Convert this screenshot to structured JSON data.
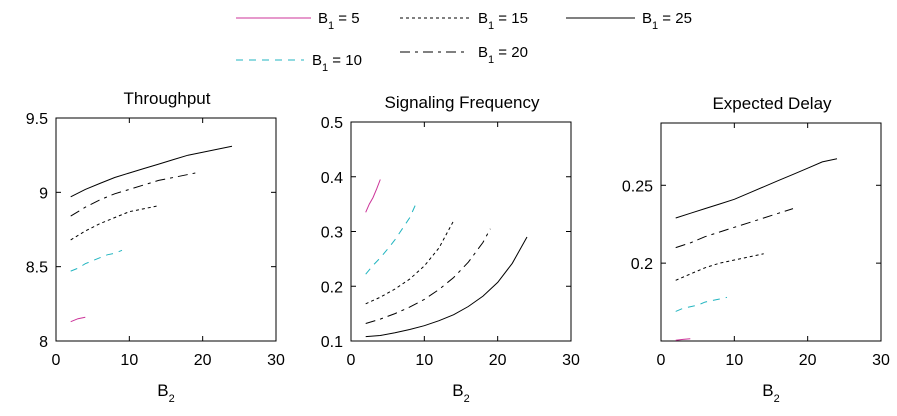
{
  "colors": {
    "s5": "#cc3399",
    "s10": "#22b5c0",
    "s15": "#000000",
    "s20": "#000000",
    "s25": "#000000"
  },
  "legend": [
    {
      "key": "s5",
      "base": "B",
      "sub": "1",
      "rest": " = 5"
    },
    {
      "key": "s15",
      "base": "B",
      "sub": "1",
      "rest": " = 15"
    },
    {
      "key": "s25",
      "base": "B",
      "sub": "1",
      "rest": " = 25"
    },
    {
      "key": "s10",
      "base": "B",
      "sub": "1",
      "rest": " = 10"
    },
    {
      "key": "s20",
      "base": "B",
      "sub": "1",
      "rest": " = 20"
    }
  ],
  "chart_data": [
    {
      "type": "line",
      "title": "Throughput",
      "xlabel": {
        "base": "B",
        "sub": "2"
      },
      "xlim": [
        0,
        30
      ],
      "ylim": [
        8,
        9.5
      ],
      "xticks": [
        "0",
        "10",
        "20",
        "30"
      ],
      "yticks": [
        "8",
        "8.5",
        "9",
        "9.5"
      ],
      "series": [
        {
          "key": "s5",
          "x": [
            2,
            3,
            4
          ],
          "y": [
            8.13,
            8.15,
            8.16
          ]
        },
        {
          "key": "s10",
          "x": [
            2,
            3,
            4,
            5,
            6,
            7,
            8,
            9
          ],
          "y": [
            8.47,
            8.49,
            8.52,
            8.54,
            8.56,
            8.58,
            8.59,
            8.61
          ]
        },
        {
          "key": "s15",
          "x": [
            2,
            4,
            6,
            8,
            10,
            12,
            14
          ],
          "y": [
            8.68,
            8.74,
            8.79,
            8.83,
            8.87,
            8.89,
            8.91
          ]
        },
        {
          "key": "s20",
          "x": [
            2,
            4,
            6,
            8,
            10,
            12,
            14,
            16,
            18,
            19
          ],
          "y": [
            8.84,
            8.9,
            8.95,
            8.99,
            9.02,
            9.05,
            9.08,
            9.1,
            9.12,
            9.13
          ]
        },
        {
          "key": "s25",
          "x": [
            2,
            4,
            6,
            8,
            10,
            12,
            14,
            16,
            18,
            20,
            22,
            24
          ],
          "y": [
            8.97,
            9.02,
            9.06,
            9.1,
            9.13,
            9.16,
            9.19,
            9.22,
            9.25,
            9.27,
            9.29,
            9.31
          ]
        }
      ]
    },
    {
      "type": "line",
      "title": "Signaling Frequency",
      "xlabel": {
        "base": "B",
        "sub": "2"
      },
      "xlim": [
        0,
        30
      ],
      "ylim": [
        0.1,
        0.5
      ],
      "xticks": [
        "0",
        "10",
        "20",
        "30"
      ],
      "yticks": [
        "0.1",
        "0.2",
        "0.3",
        "0.4",
        "0.5"
      ],
      "series": [
        {
          "key": "s5",
          "x": [
            2,
            2.5,
            3,
            3.5,
            4
          ],
          "y": [
            0.335,
            0.35,
            0.362,
            0.378,
            0.395
          ]
        },
        {
          "key": "s10",
          "x": [
            2,
            3,
            4,
            5,
            6,
            7,
            8,
            9
          ],
          "y": [
            0.222,
            0.238,
            0.252,
            0.268,
            0.285,
            0.305,
            0.325,
            0.355
          ]
        },
        {
          "key": "s15",
          "x": [
            2,
            4,
            6,
            8,
            10,
            12,
            14
          ],
          "y": [
            0.168,
            0.18,
            0.195,
            0.213,
            0.237,
            0.27,
            0.32
          ]
        },
        {
          "key": "s20",
          "x": [
            2,
            4,
            6,
            8,
            10,
            12,
            14,
            16,
            18,
            19
          ],
          "y": [
            0.132,
            0.14,
            0.15,
            0.162,
            0.176,
            0.194,
            0.216,
            0.244,
            0.28,
            0.305
          ]
        },
        {
          "key": "s25",
          "x": [
            2,
            4,
            6,
            8,
            10,
            12,
            14,
            16,
            18,
            20,
            22,
            24
          ],
          "y": [
            0.108,
            0.11,
            0.115,
            0.121,
            0.128,
            0.137,
            0.148,
            0.163,
            0.182,
            0.207,
            0.242,
            0.29
          ]
        }
      ]
    },
    {
      "type": "line",
      "title": "Expected Delay",
      "xlabel": {
        "base": "B",
        "sub": "2"
      },
      "xlim": [
        0,
        30
      ],
      "ylim": [
        0.15,
        0.29
      ],
      "xticks": [
        "0",
        "10",
        "20",
        "30"
      ],
      "yticks": [
        "0.2",
        "0.25"
      ],
      "yticks_at": [
        0.2,
        0.25
      ],
      "series": [
        {
          "key": "s5",
          "x": [
            2,
            3,
            4
          ],
          "y": [
            0.1505,
            0.151,
            0.1515
          ]
        },
        {
          "key": "s10",
          "x": [
            2,
            3,
            4,
            5,
            6,
            7,
            8,
            9
          ],
          "y": [
            0.169,
            0.171,
            0.172,
            0.173,
            0.175,
            0.176,
            0.177,
            0.178
          ]
        },
        {
          "key": "s15",
          "x": [
            2,
            4,
            6,
            8,
            10,
            12,
            14
          ],
          "y": [
            0.189,
            0.193,
            0.197,
            0.2,
            0.202,
            0.204,
            0.206
          ]
        },
        {
          "key": "s20",
          "x": [
            2,
            4,
            6,
            8,
            10,
            12,
            14,
            16,
            18
          ],
          "y": [
            0.21,
            0.213,
            0.217,
            0.22,
            0.223,
            0.226,
            0.229,
            0.232,
            0.235
          ]
        },
        {
          "key": "s25",
          "x": [
            2,
            4,
            6,
            8,
            10,
            12,
            14,
            16,
            18,
            20,
            22,
            24
          ],
          "y": [
            0.229,
            0.232,
            0.235,
            0.238,
            0.241,
            0.245,
            0.249,
            0.253,
            0.257,
            0.261,
            0.265,
            0.267
          ]
        }
      ]
    }
  ]
}
